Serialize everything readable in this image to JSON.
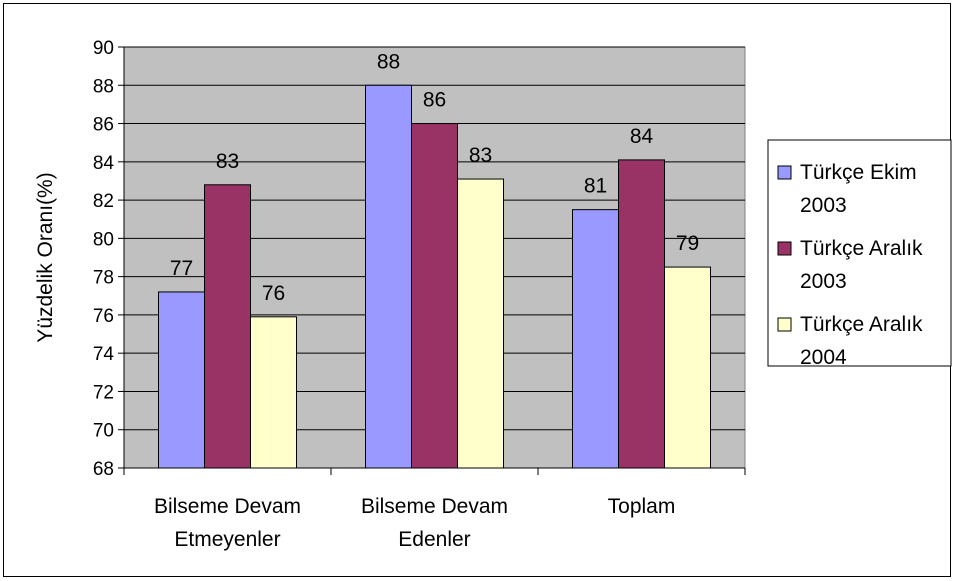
{
  "chart_data": {
    "type": "bar",
    "categories": [
      [
        "Bilseme Devam",
        "Etmeyenler"
      ],
      [
        "Bilseme Devam",
        "Edenler"
      ],
      [
        "Toplam"
      ]
    ],
    "series": [
      {
        "name": [
          "Türkçe Ekim",
          "2003"
        ],
        "color": "#9999ff",
        "values": [
          77.2,
          88.0,
          81.5
        ],
        "labels": [
          "77",
          "88",
          "81"
        ]
      },
      {
        "name": [
          "Türkçe Aralık",
          "2003"
        ],
        "color": "#993366",
        "values": [
          82.8,
          86.0,
          84.1
        ],
        "labels": [
          "83",
          "86",
          "84"
        ]
      },
      {
        "name": [
          "Türkçe Aralık",
          "2004"
        ],
        "color": "#ffffcc",
        "values": [
          75.9,
          83.1,
          78.5
        ],
        "labels": [
          "76",
          "83",
          "79"
        ]
      }
    ],
    "ylabel": "Yüzdelik Oranı(%)",
    "ylim": [
      68,
      90
    ],
    "yticks": [
      "68",
      "70",
      "72",
      "74",
      "76",
      "78",
      "80",
      "82",
      "84",
      "86",
      "88",
      "90"
    ],
    "plot_background": "#c0c0c0",
    "grid": true,
    "legend": "right"
  }
}
